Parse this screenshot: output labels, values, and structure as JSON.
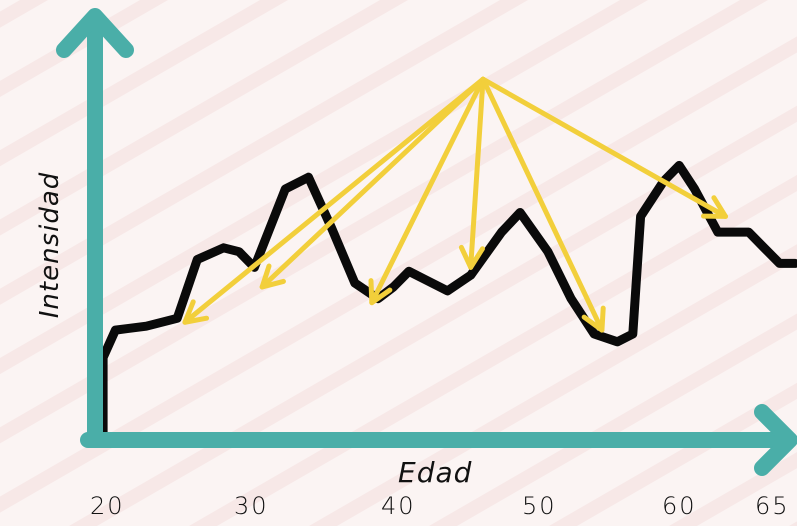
{
  "colors": {
    "axis": "#4aaea8",
    "line": "#0a0a0a",
    "arrow": "#f2cf3b",
    "background": "#fbf4f3",
    "texture": "#f4dede"
  },
  "chart_data": {
    "type": "line",
    "xlabel": "Edad",
    "ylabel": "Intensidad",
    "x_ticks": [
      "20",
      "30",
      "40",
      "50",
      "60",
      "65"
    ],
    "xlim": [
      20,
      65
    ],
    "ylim": [
      0,
      10
    ],
    "grid": false,
    "y_ticks_shown": false,
    "series": [
      {
        "points": [
          [
            20.2,
            0.0
          ],
          [
            20.2,
            1.9
          ],
          [
            21,
            2.6
          ],
          [
            23,
            2.7
          ],
          [
            25,
            2.9
          ],
          [
            26.3,
            4.4
          ],
          [
            28,
            4.7
          ],
          [
            29,
            4.6
          ],
          [
            30,
            4.2
          ],
          [
            32,
            6.2
          ],
          [
            33.5,
            6.5
          ],
          [
            35,
            5.2
          ],
          [
            36.5,
            3.8
          ],
          [
            38,
            3.4
          ],
          [
            39,
            3.7
          ],
          [
            40,
            4.1
          ],
          [
            41,
            3.9
          ],
          [
            42.5,
            3.6
          ],
          [
            44,
            4.0
          ],
          [
            46,
            5.1
          ],
          [
            47.2,
            5.6
          ],
          [
            49,
            4.6
          ],
          [
            50.5,
            3.4
          ],
          [
            52,
            2.5
          ],
          [
            53.5,
            2.3
          ],
          [
            54.5,
            2.5
          ],
          [
            55,
            5.5
          ],
          [
            56.5,
            6.4
          ],
          [
            57.5,
            6.8
          ],
          [
            58.5,
            6.2
          ],
          [
            60,
            5.1
          ],
          [
            62,
            5.1
          ],
          [
            63,
            4.7
          ],
          [
            64,
            4.3
          ],
          [
            65,
            4.3
          ]
        ]
      }
    ],
    "annotations": {
      "arrow_origin": [
        44.8,
        9.0
      ],
      "arrow_targets": [
        [
          25.5,
          2.8
        ],
        [
          30.5,
          3.7
        ],
        [
          37.6,
          3.3
        ],
        [
          44.0,
          4.2
        ],
        [
          52.5,
          2.6
        ],
        [
          60.5,
          5.5
        ]
      ]
    }
  }
}
